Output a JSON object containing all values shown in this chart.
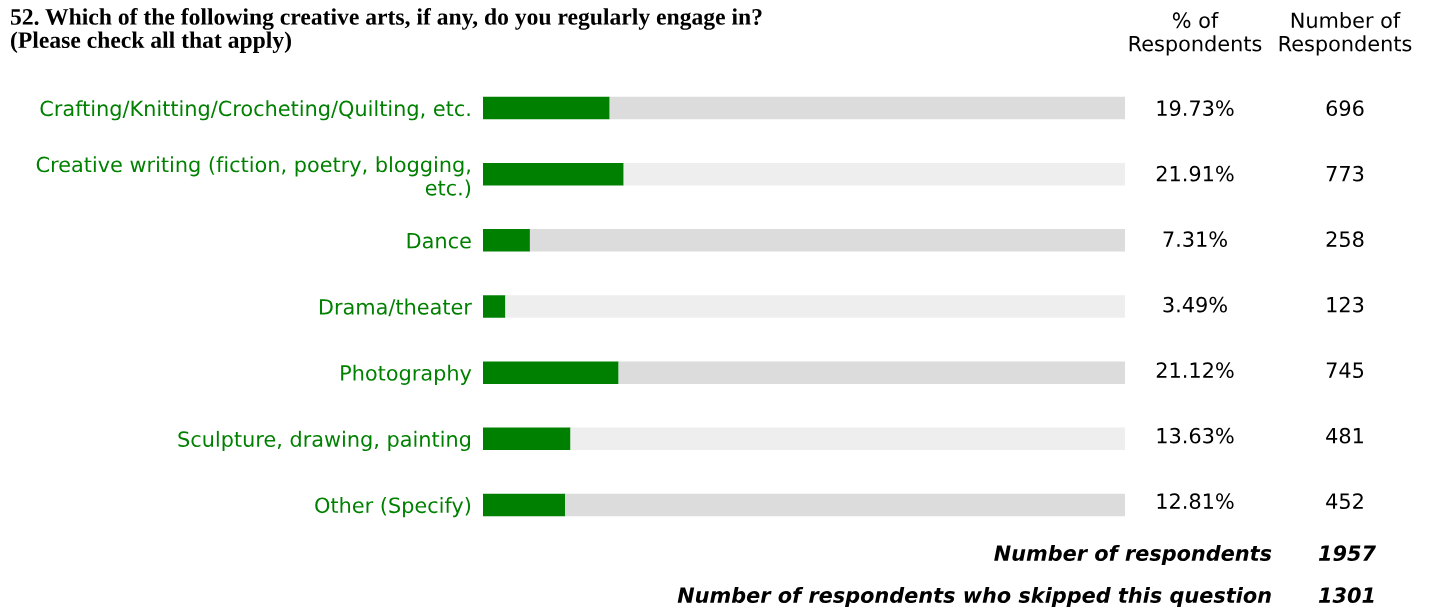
{
  "chart_data": {
    "type": "bar",
    "orientation": "horizontal",
    "stacked": true,
    "title": "52. Which of the following creative arts, if any, do you regularly engage in?\n(Please check all that apply)",
    "categories": [
      "Crafting/Knitting/Crocheting/Quilting, etc.",
      "Creative writing (fiction, poetry, blogging,\netc.)",
      "Dance",
      "Drama/theater",
      "Photography",
      "Sculpture, drawing, painting",
      "Other (Specify)"
    ],
    "series": [
      {
        "color": "#008000",
        "values": [
          19.73,
          21.91,
          7.31,
          3.49,
          21.12,
          13.63,
          12.81
        ],
        "value_labels": [
          "19.73%",
          "21.91%",
          "7.31%",
          "3.49%",
          "21.12%",
          "13.63%",
          "12.81%"
        ]
      },
      {
        "colors": [
          "#dcdcdc",
          "#eeeeee",
          "#dcdcdc",
          "#eeeeee",
          "#dcdcdc",
          "#eeeeee",
          "#dcdcdc"
        ],
        "values": [
          80.27,
          78.09,
          92.69,
          96.51,
          78.88,
          86.37,
          87.19
        ]
      }
    ],
    "xlim": [
      0,
      100
    ],
    "grid": false,
    "legend": false,
    "annotations": [
      "% of\nRespondents",
      "Number of\nRespondents",
      "696",
      "773",
      "258",
      "123",
      "745",
      "481",
      "452",
      "Number of respondents",
      "1957",
      "Number of respondents who skipped this question",
      "1301"
    ]
  }
}
